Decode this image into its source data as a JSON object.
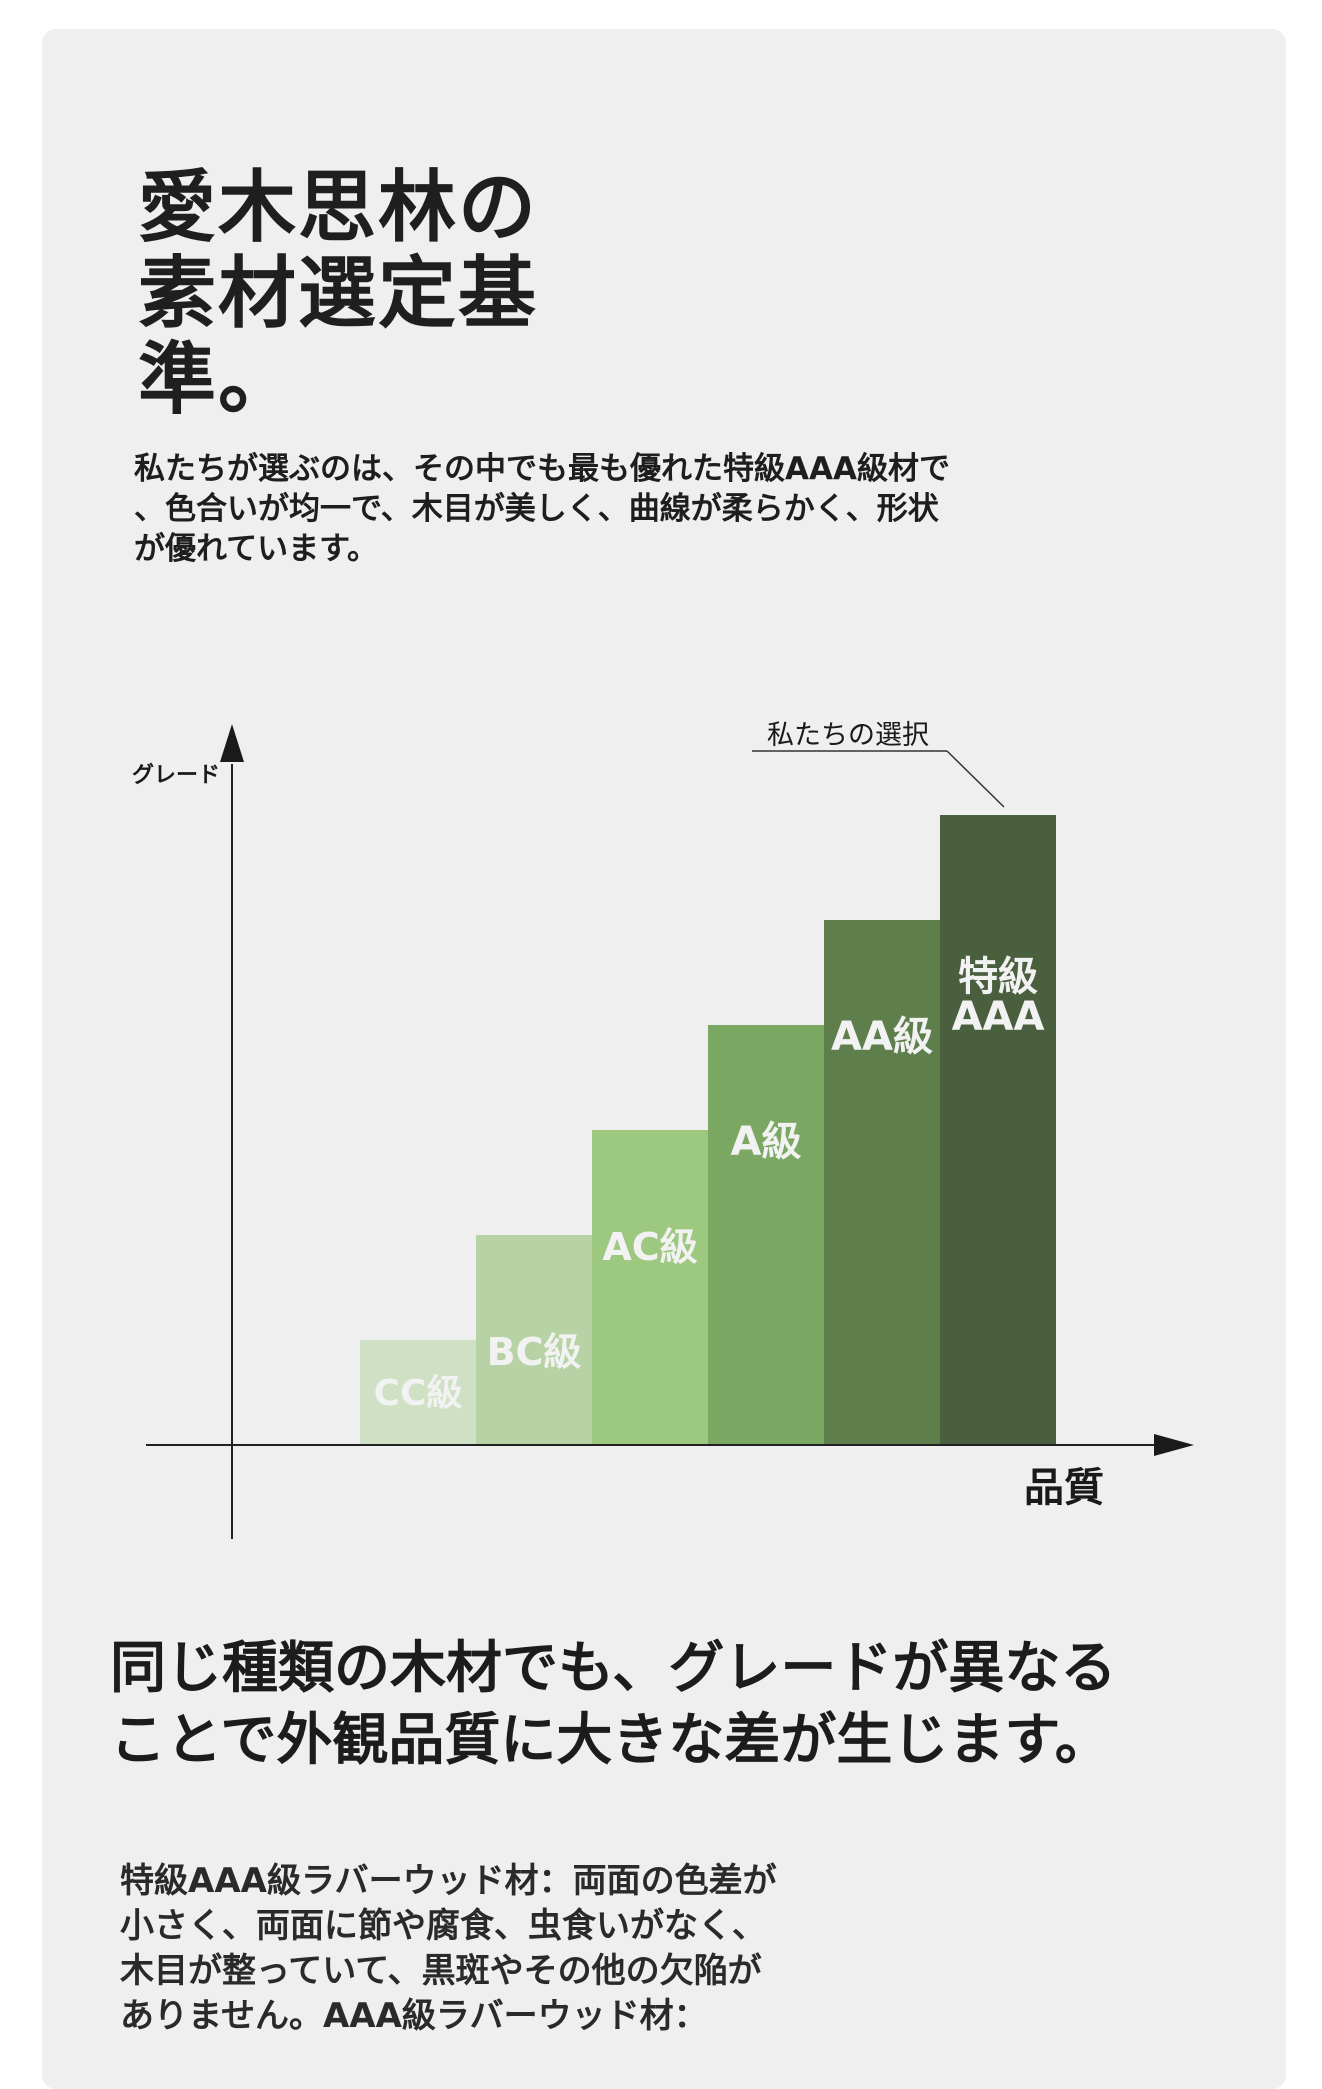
{
  "title": {
    "lines": [
      "愛木思林の",
      "素材選定基",
      "準。"
    ]
  },
  "intro": {
    "lines": [
      "私たちが選ぶのは、その中でも最も優れた特級AAA級材で",
      "、色合いが均一で、木目が美しく、曲線が柔らかく、形状",
      "が優れています。"
    ]
  },
  "chart_data": {
    "type": "bar",
    "ylabel": "グレード",
    "xlabel": "品質",
    "annotation": "私たちの選択",
    "categories": [
      "CC級",
      "BC級",
      "AC級",
      "A級",
      "AA級",
      "特級AAA"
    ],
    "values": [
      1,
      2,
      3,
      4,
      5,
      6
    ],
    "ylim": [
      0,
      7.2
    ],
    "bar_labels": [
      [
        "CC級"
      ],
      [
        "BC級"
      ],
      [
        "AC級"
      ],
      [
        "A級"
      ],
      [
        "AA級"
      ],
      [
        "特級",
        "AAA"
      ]
    ],
    "colors": [
      "#cfe0c4",
      "#b7d3a5",
      "#9cc87f",
      "#7aa862",
      "#5e7f4b",
      "#4a5f3e"
    ],
    "label_color": "#f2f2f2",
    "grid": false
  },
  "heading2": {
    "lines": [
      "同じ種類の木材でも、グレードが異なる",
      "ことで外観品質に大きな差が生じます。"
    ]
  },
  "body": {
    "lines": [
      "特級AAA級ラバーウッド材：両面の色差が",
      "小さく、両面に節や腐食、虫食いがなく、",
      "木目が整っていて、黒斑やその他の欠陥が",
      "ありません。AAA級ラバーウッド材："
    ]
  }
}
